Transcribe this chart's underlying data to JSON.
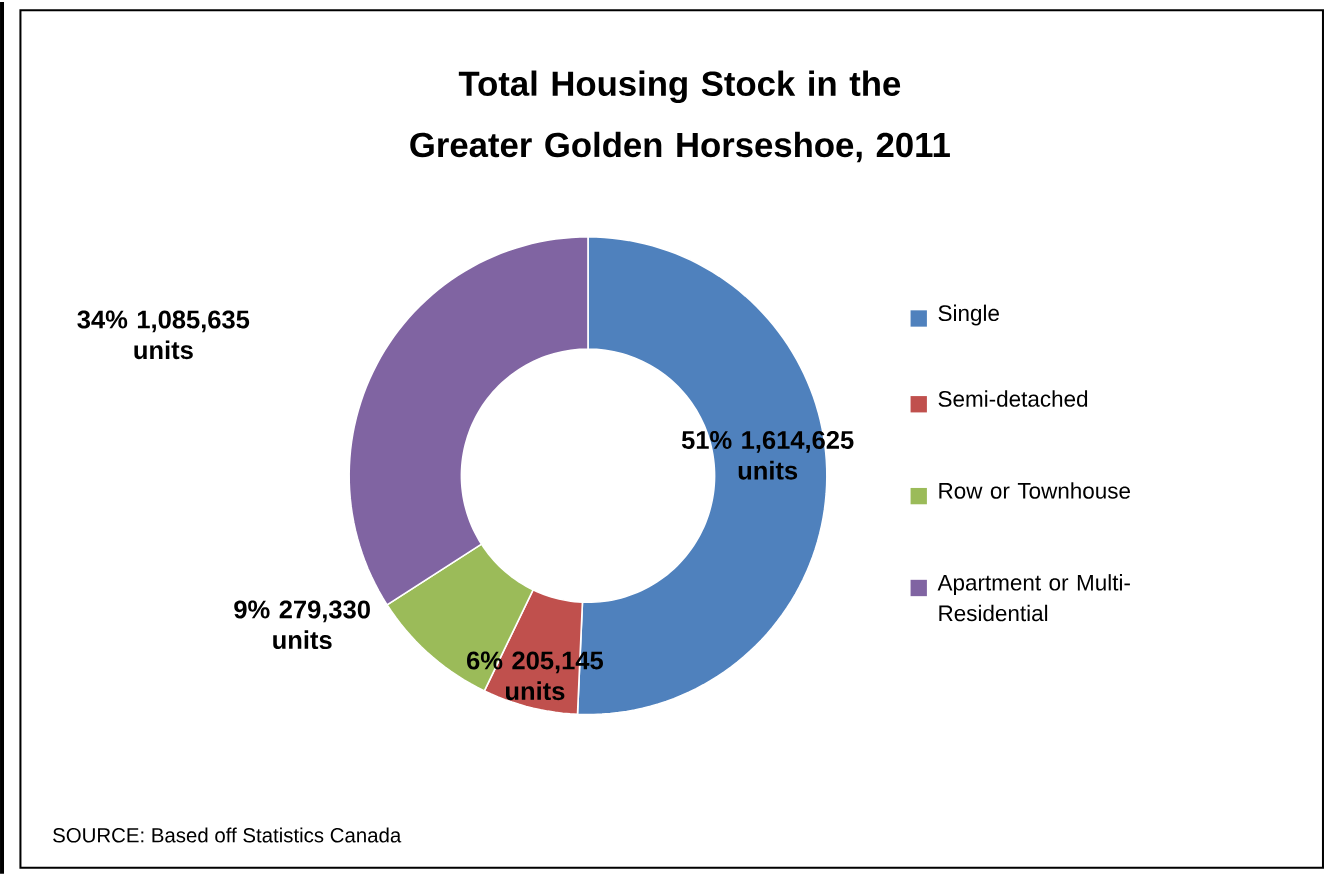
{
  "chart_data": {
    "type": "donut",
    "title": "Total Housing Stock in the Greater Golden Horseshoe, 2011",
    "categories": [
      "Single",
      "Semi-detached",
      "Row or Townhouse",
      "Apartment or Multi-Residential"
    ],
    "values": [
      1614625,
      205145,
      279330,
      1085635
    ],
    "value_labels": [
      "51% 1,614,625 units",
      "6% 205,145 units",
      "9% 279,330 units",
      "34% 1,085,635 units"
    ],
    "colors": [
      "#4f81bd",
      "#c0504d",
      "#9bbb59",
      "#8064a2"
    ],
    "legend": "right",
    "annotations": [
      "SOURCE: Based off Statistics Canada"
    ]
  }
}
